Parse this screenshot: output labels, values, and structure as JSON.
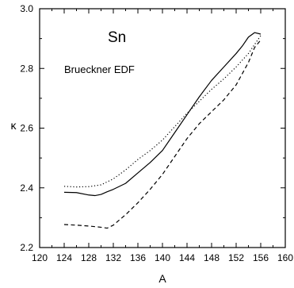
{
  "chart_data": {
    "type": "line",
    "title": "Sn",
    "annotation": "Brueckner EDF",
    "xlabel": "A",
    "ylabel": "κ",
    "xlim": [
      120,
      160
    ],
    "ylim": [
      2.2,
      3.0
    ],
    "xticks": [
      120,
      124,
      128,
      132,
      136,
      140,
      144,
      148,
      152,
      156,
      160
    ],
    "yticks": [
      2.2,
      2.4,
      2.6,
      2.8,
      3.0
    ],
    "ytick_labels": [
      "2.2",
      "2.4",
      "2.6",
      "2.8",
      "3.0"
    ],
    "grid": false,
    "legend": "none",
    "series": [
      {
        "style": "solid",
        "x": [
          124,
          126,
          128,
          129,
          130,
          131,
          132,
          134,
          136,
          138,
          140,
          142,
          144,
          146,
          148,
          150,
          152,
          153,
          154,
          155,
          156
        ],
        "y": [
          2.385,
          2.384,
          2.376,
          2.374,
          2.378,
          2.387,
          2.395,
          2.415,
          2.45,
          2.485,
          2.525,
          2.585,
          2.645,
          2.705,
          2.76,
          2.805,
          2.85,
          2.875,
          2.905,
          2.92,
          2.915
        ]
      },
      {
        "style": "dotted",
        "x": [
          124,
          126,
          128,
          130,
          132,
          134,
          136,
          138,
          140,
          142,
          144,
          146,
          148,
          150,
          152,
          154,
          155,
          156
        ],
        "y": [
          2.405,
          2.403,
          2.404,
          2.41,
          2.43,
          2.46,
          2.495,
          2.525,
          2.56,
          2.605,
          2.65,
          2.69,
          2.73,
          2.765,
          2.805,
          2.85,
          2.88,
          2.91
        ]
      },
      {
        "style": "dashed",
        "x": [
          124,
          126,
          128,
          130,
          131,
          132,
          134,
          136,
          138,
          140,
          142,
          144,
          146,
          148,
          150,
          152,
          154,
          155,
          156
        ],
        "y": [
          2.277,
          2.275,
          2.272,
          2.268,
          2.265,
          2.275,
          2.31,
          2.35,
          2.395,
          2.445,
          2.505,
          2.565,
          2.615,
          2.655,
          2.695,
          2.745,
          2.82,
          2.87,
          2.895
        ]
      }
    ]
  }
}
